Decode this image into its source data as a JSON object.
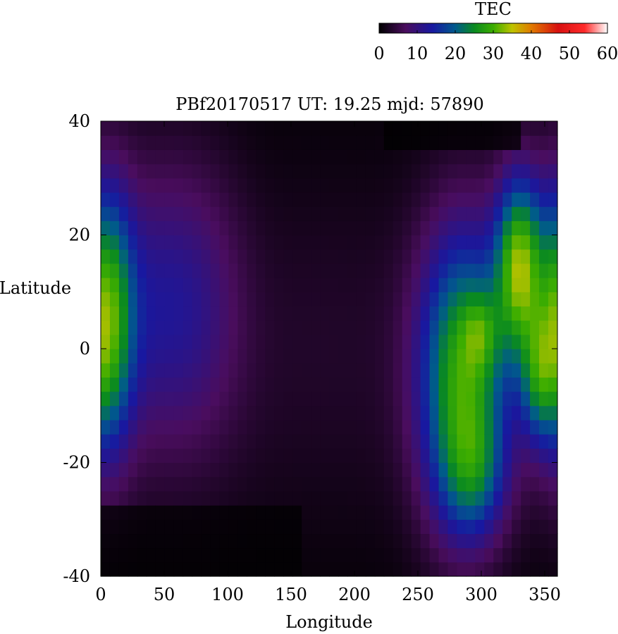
{
  "chart_data": {
    "type": "heatmap",
    "title": "PBf20170517  UT: 19.25  mjd: 57890",
    "xlabel": "Longitude",
    "ylabel": "Latitude",
    "xlim": [
      0,
      360
    ],
    "ylim": [
      -40,
      40
    ],
    "x_ticks": [
      "0",
      "50",
      "100",
      "150",
      "200",
      "250",
      "300",
      "350"
    ],
    "y_ticks": [
      "40",
      "20",
      "0",
      "-20",
      "-40"
    ],
    "x_tick_values": [
      0,
      50,
      100,
      150,
      200,
      250,
      300,
      350
    ],
    "y_tick_values": [
      40,
      20,
      0,
      -20,
      -40
    ],
    "colorbar": {
      "label": "TEC",
      "range": [
        0,
        60
      ],
      "ticks": [
        "0",
        "10",
        "20",
        "30",
        "40",
        "50",
        "60"
      ],
      "tick_values": [
        0,
        10,
        20,
        30,
        40,
        50,
        60
      ],
      "placement": "top-right",
      "colors": [
        {
          "v": 0,
          "c": "#000000"
        },
        {
          "v": 7,
          "c": "#4a0d5e"
        },
        {
          "v": 14,
          "c": "#1818a0"
        },
        {
          "v": 20,
          "c": "#005a8c"
        },
        {
          "v": 25,
          "c": "#0a8a20"
        },
        {
          "v": 30,
          "c": "#3cad00"
        },
        {
          "v": 35,
          "c": "#bfc300"
        },
        {
          "v": 40,
          "c": "#e07a00"
        },
        {
          "v": 47,
          "c": "#d71010"
        },
        {
          "v": 54,
          "c": "#ff2a2a"
        },
        {
          "v": 60,
          "c": "#ffffff"
        }
      ]
    },
    "grid": false,
    "resolution": {
      "lon_step": 7.2,
      "lat_step": 2.5
    },
    "features": [
      {
        "lon": 5,
        "lat": 5,
        "dlon": 14,
        "dlat": 16,
        "amp": 24
      },
      {
        "lon": 55,
        "lat": 8,
        "dlon": 45,
        "dlat": 18,
        "amp": 10
      },
      {
        "lon": 285,
        "lat": -5,
        "dlon": 24,
        "dlat": 18,
        "amp": 26
      },
      {
        "lon": 330,
        "lat": 15,
        "dlon": 13,
        "dlat": 11,
        "amp": 27
      },
      {
        "lon": 345,
        "lat": -5,
        "dlon": 10,
        "dlat": 8,
        "amp": 14
      },
      {
        "lon": 295,
        "lat": -22,
        "dlon": 18,
        "dlat": 8,
        "amp": 10
      },
      {
        "lon": 300,
        "lat": 3,
        "dlon": 10,
        "dlat": 5,
        "amp": 8
      }
    ]
  }
}
